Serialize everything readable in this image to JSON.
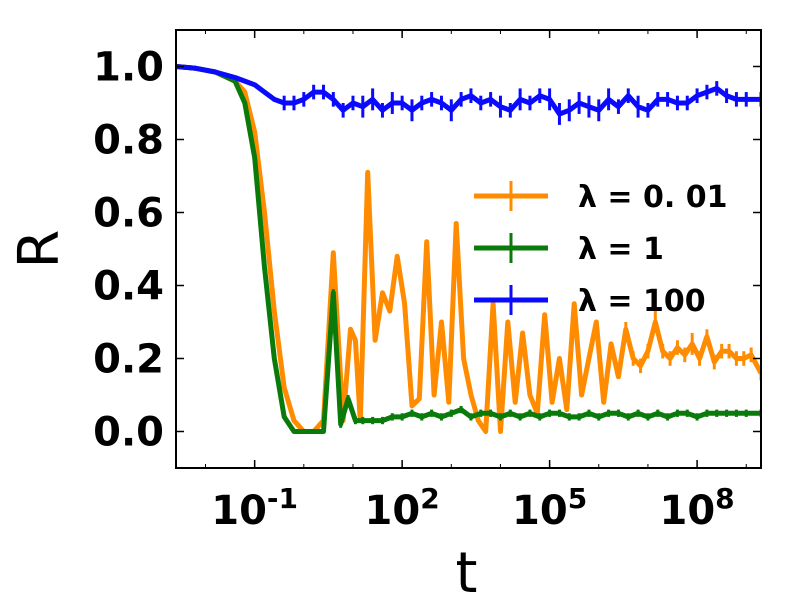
{
  "chart_data": {
    "type": "line",
    "xscale": "log",
    "xlim_log10": [
      -2.6,
      9.3
    ],
    "ylim": [
      -0.1,
      1.1
    ],
    "xlabel": "t",
    "ylabel": "R",
    "grid": false,
    "legend_position": "center-right",
    "x_ticks": [
      {
        "log10": -1,
        "base": "10",
        "exp": "-1"
      },
      {
        "log10": 2,
        "base": "10",
        "exp": "2"
      },
      {
        "log10": 5,
        "base": "10",
        "exp": "5"
      },
      {
        "log10": 8,
        "base": "10",
        "exp": "8"
      }
    ],
    "y_ticks": [
      {
        "value": 0.0,
        "label": "0.0"
      },
      {
        "value": 0.2,
        "label": "0.2"
      },
      {
        "value": 0.4,
        "label": "0.4"
      },
      {
        "value": 0.6,
        "label": "0.6"
      },
      {
        "value": 0.8,
        "label": "0.8"
      },
      {
        "value": 1.0,
        "label": "1.0"
      }
    ],
    "series": [
      {
        "name": "λ = 0.01",
        "label_prefix": "λ = ",
        "label_value": "0. 01",
        "color": "#FF8C00",
        "x_log10": [
          -2.6,
          -2.2,
          -1.8,
          -1.4,
          -1.2,
          -1.0,
          -0.8,
          -0.6,
          -0.4,
          -0.2,
          0.0,
          0.2,
          0.4,
          0.6,
          0.8,
          0.95,
          1.05,
          1.15,
          1.3,
          1.45,
          1.6,
          1.75,
          1.9,
          2.05,
          2.2,
          2.35,
          2.5,
          2.65,
          2.8,
          2.95,
          3.1,
          3.25,
          3.4,
          3.55,
          3.7,
          3.85,
          4.0,
          4.15,
          4.3,
          4.45,
          4.6,
          4.75,
          4.9,
          5.05,
          5.2,
          5.35,
          5.5,
          5.65,
          5.8,
          5.95,
          6.1,
          6.25,
          6.4,
          6.55,
          6.7,
          6.85,
          7.0,
          7.15,
          7.3,
          7.45,
          7.6,
          7.75,
          7.9,
          8.05,
          8.2,
          8.35,
          8.5,
          8.65,
          8.8,
          8.95,
          9.1,
          9.3
        ],
        "y": [
          1.0,
          0.995,
          0.985,
          0.96,
          0.93,
          0.82,
          0.6,
          0.33,
          0.12,
          0.03,
          0.0,
          0.0,
          0.03,
          0.49,
          0.03,
          0.28,
          0.25,
          0.03,
          0.71,
          0.25,
          0.38,
          0.33,
          0.48,
          0.35,
          0.07,
          0.09,
          0.52,
          0.1,
          0.3,
          0.08,
          0.57,
          0.2,
          0.1,
          0.03,
          0.0,
          0.35,
          0.0,
          0.3,
          0.08,
          0.27,
          0.1,
          0.05,
          0.32,
          0.08,
          0.2,
          0.06,
          0.35,
          0.1,
          0.2,
          0.3,
          0.08,
          0.24,
          0.15,
          0.28,
          0.2,
          0.18,
          0.22,
          0.3,
          0.22,
          0.2,
          0.23,
          0.21,
          0.24,
          0.2,
          0.26,
          0.19,
          0.22,
          0.22,
          0.2,
          0.2,
          0.21,
          0.16
        ],
        "err": [
          0,
          0,
          0,
          0,
          0,
          0,
          0,
          0,
          0,
          0,
          0,
          0,
          0,
          0,
          0,
          0,
          0,
          0,
          0,
          0,
          0,
          0,
          0,
          0,
          0,
          0,
          0,
          0,
          0,
          0,
          0,
          0,
          0,
          0,
          0,
          0,
          0,
          0,
          0,
          0,
          0,
          0,
          0,
          0,
          0,
          0,
          0,
          0,
          0,
          0,
          0,
          0,
          0,
          0.02,
          0.02,
          0.02,
          0.02,
          0.03,
          0.02,
          0.02,
          0.02,
          0.02,
          0.03,
          0.02,
          0.02,
          0.02,
          0.02,
          0.02,
          0.02,
          0.02,
          0.02,
          0.02
        ]
      },
      {
        "name": "λ = 1",
        "label_prefix": "λ = ",
        "label_value": "1",
        "color": "#0A7A0A",
        "x_log10": [
          -2.6,
          -2.2,
          -1.8,
          -1.4,
          -1.2,
          -1.0,
          -0.8,
          -0.6,
          -0.4,
          -0.2,
          0.0,
          0.2,
          0.4,
          0.6,
          0.75,
          0.9,
          1.05,
          1.2,
          1.4,
          1.6,
          1.8,
          2.0,
          2.2,
          2.4,
          2.6,
          2.8,
          3.0,
          3.2,
          3.4,
          3.6,
          3.8,
          4.0,
          4.2,
          4.4,
          4.6,
          4.8,
          5.0,
          5.2,
          5.4,
          5.6,
          5.8,
          6.0,
          6.2,
          6.4,
          6.6,
          6.8,
          7.0,
          7.2,
          7.4,
          7.6,
          7.8,
          8.0,
          8.2,
          8.4,
          8.6,
          8.8,
          9.0,
          9.3
        ],
        "y": [
          1.0,
          0.995,
          0.985,
          0.96,
          0.9,
          0.75,
          0.45,
          0.2,
          0.04,
          0.0,
          0.0,
          0.0,
          0.0,
          0.38,
          0.02,
          0.09,
          0.03,
          0.03,
          0.03,
          0.03,
          0.04,
          0.04,
          0.05,
          0.04,
          0.05,
          0.04,
          0.05,
          0.06,
          0.04,
          0.05,
          0.05,
          0.04,
          0.05,
          0.04,
          0.05,
          0.04,
          0.05,
          0.05,
          0.04,
          0.04,
          0.05,
          0.04,
          0.05,
          0.05,
          0.04,
          0.05,
          0.04,
          0.05,
          0.04,
          0.05,
          0.05,
          0.04,
          0.05,
          0.05,
          0.05,
          0.05,
          0.05,
          0.05
        ],
        "err": [
          0,
          0,
          0,
          0,
          0,
          0,
          0,
          0,
          0,
          0,
          0,
          0,
          0,
          0.01,
          0.01,
          0.01,
          0.01,
          0.01,
          0.01,
          0.01,
          0.01,
          0.01,
          0.01,
          0.01,
          0.01,
          0.01,
          0.01,
          0.01,
          0.01,
          0.01,
          0.01,
          0.01,
          0.01,
          0.01,
          0.01,
          0.01,
          0.01,
          0.01,
          0.01,
          0.01,
          0.01,
          0.01,
          0.01,
          0.01,
          0.01,
          0.01,
          0.01,
          0.01,
          0.01,
          0.01,
          0.01,
          0.01,
          0.01,
          0.01,
          0.01,
          0.01,
          0.01,
          0.01
        ]
      },
      {
        "name": "λ = 100",
        "label_prefix": "λ = ",
        "label_value": "100",
        "color": "#0A0AFF",
        "x_log10": [
          -2.6,
          -2.2,
          -1.8,
          -1.4,
          -1.2,
          -1.0,
          -0.8,
          -0.6,
          -0.4,
          -0.2,
          0.0,
          0.2,
          0.4,
          0.6,
          0.8,
          1.0,
          1.2,
          1.4,
          1.6,
          1.8,
          2.0,
          2.2,
          2.4,
          2.6,
          2.8,
          3.0,
          3.2,
          3.4,
          3.6,
          3.8,
          4.0,
          4.2,
          4.4,
          4.6,
          4.8,
          5.0,
          5.2,
          5.4,
          5.6,
          5.8,
          6.0,
          6.2,
          6.4,
          6.6,
          6.8,
          7.0,
          7.2,
          7.4,
          7.6,
          7.8,
          8.0,
          8.2,
          8.4,
          8.6,
          8.8,
          9.0,
          9.3
        ],
        "y": [
          1.0,
          0.995,
          0.985,
          0.97,
          0.96,
          0.95,
          0.93,
          0.91,
          0.9,
          0.9,
          0.91,
          0.93,
          0.93,
          0.91,
          0.88,
          0.9,
          0.89,
          0.91,
          0.88,
          0.9,
          0.9,
          0.88,
          0.9,
          0.91,
          0.9,
          0.88,
          0.91,
          0.92,
          0.9,
          0.91,
          0.89,
          0.88,
          0.91,
          0.9,
          0.92,
          0.91,
          0.87,
          0.88,
          0.9,
          0.89,
          0.88,
          0.91,
          0.89,
          0.92,
          0.89,
          0.88,
          0.91,
          0.91,
          0.9,
          0.9,
          0.92,
          0.93,
          0.94,
          0.92,
          0.91,
          0.91,
          0.91
        ],
        "err": [
          0,
          0,
          0,
          0,
          0,
          0,
          0,
          0,
          0.02,
          0.02,
          0.02,
          0.02,
          0.02,
          0.02,
          0.02,
          0.02,
          0.03,
          0.03,
          0.02,
          0.03,
          0.02,
          0.03,
          0.02,
          0.02,
          0.02,
          0.03,
          0.02,
          0.02,
          0.02,
          0.02,
          0.03,
          0.02,
          0.03,
          0.02,
          0.02,
          0.03,
          0.03,
          0.03,
          0.03,
          0.03,
          0.03,
          0.03,
          0.02,
          0.02,
          0.03,
          0.02,
          0.02,
          0.02,
          0.02,
          0.02,
          0.02,
          0.02,
          0.02,
          0.02,
          0.02,
          0.02,
          0.02
        ]
      }
    ]
  }
}
